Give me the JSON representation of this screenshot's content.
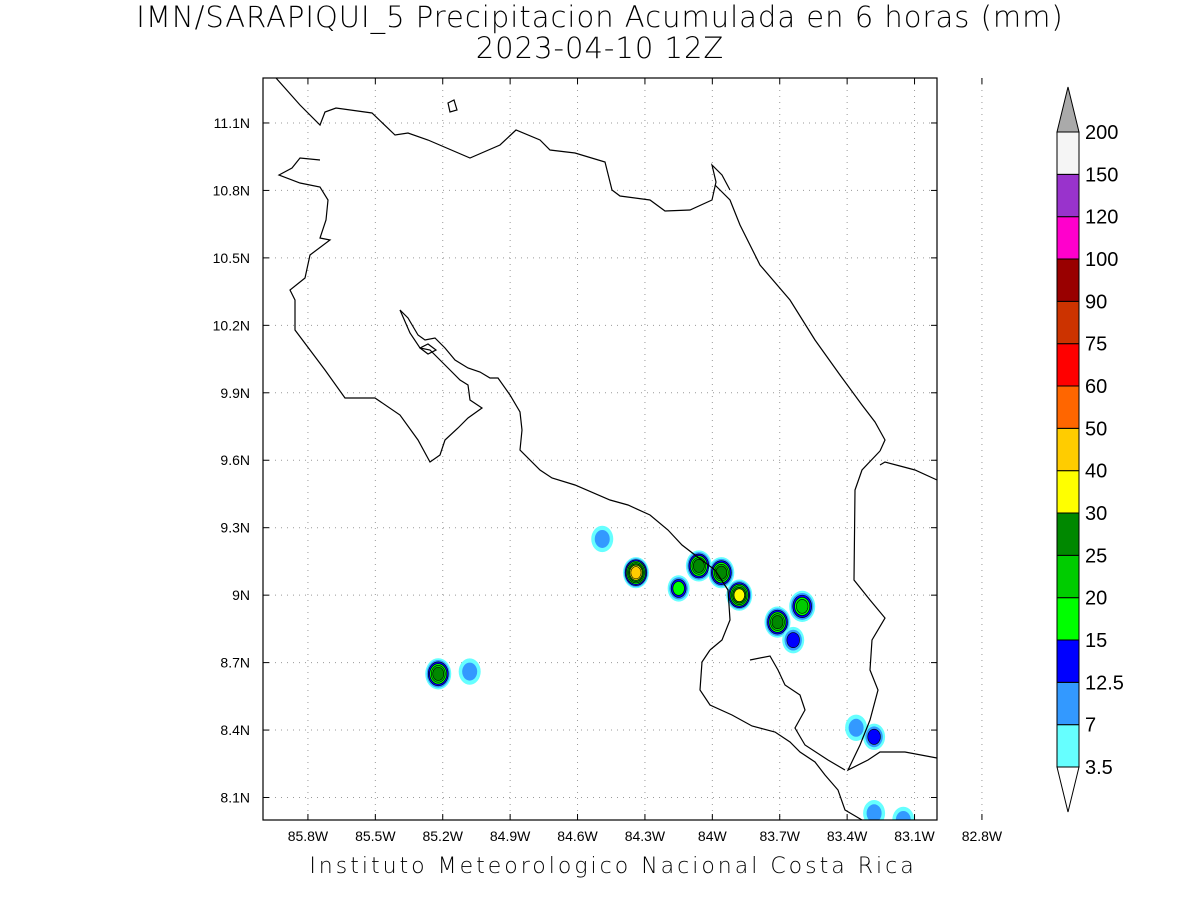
{
  "title": {
    "line1": "IMN/SARAPIQUI_5 Precipitacion Acumulada en 6 horas (mm)",
    "line2": "2023-04-10 12Z"
  },
  "footer": "Instituto Meteorologico Nacional Costa Rica",
  "axes": {
    "x_ticks": [
      "85.8W",
      "85.5W",
      "85.2W",
      "84.9W",
      "84.6W",
      "84.3W",
      "84W",
      "83.7W",
      "83.4W",
      "83.1W",
      "82.8W"
    ],
    "y_ticks": [
      "11.1N",
      "10.8N",
      "10.5N",
      "10.2N",
      "9.9N",
      "9.6N",
      "9.3N",
      "9N",
      "8.7N",
      "8.4N",
      "8.1N"
    ],
    "x_range_deg_w": [
      86.0,
      83.0
    ],
    "y_range_deg_n": [
      8.0,
      11.3
    ],
    "grid": "dotted"
  },
  "colorbar": {
    "levels": [
      "3.5",
      "7",
      "12.5",
      "15",
      "20",
      "25",
      "30",
      "40",
      "50",
      "60",
      "75",
      "90",
      "100",
      "120",
      "150",
      "200"
    ],
    "colors": [
      "#66ffff",
      "#3399ff",
      "#0000ff",
      "#00ff00",
      "#00cc00",
      "#008800",
      "#ffff00",
      "#ffcc00",
      "#ff6600",
      "#ff0000",
      "#cc3300",
      "#990000",
      "#ff00cc",
      "#9933cc",
      "#f5f5f5",
      "#aaaaaa"
    ],
    "below_color": "#ffffff",
    "above_color": "#aaaaaa"
  },
  "precip_cells": [
    {
      "lon_w": 84.34,
      "lat_n": 9.1,
      "peak": "40"
    },
    {
      "lon_w": 84.06,
      "lat_n": 9.13,
      "peak": "25"
    },
    {
      "lon_w": 83.96,
      "lat_n": 9.1,
      "peak": "25"
    },
    {
      "lon_w": 83.88,
      "lat_n": 9.0,
      "peak": "30"
    },
    {
      "lon_w": 84.15,
      "lat_n": 9.03,
      "peak": "15"
    },
    {
      "lon_w": 83.71,
      "lat_n": 8.88,
      "peak": "25"
    },
    {
      "lon_w": 83.6,
      "lat_n": 8.95,
      "peak": "20"
    },
    {
      "lon_w": 83.64,
      "lat_n": 8.8,
      "peak": "12.5"
    },
    {
      "lon_w": 85.22,
      "lat_n": 8.65,
      "peak": "25"
    },
    {
      "lon_w": 85.08,
      "lat_n": 8.66,
      "peak": "7"
    },
    {
      "lon_w": 83.28,
      "lat_n": 8.37,
      "peak": "12.5"
    },
    {
      "lon_w": 84.49,
      "lat_n": 9.25,
      "peak": "7"
    },
    {
      "lon_w": 83.36,
      "lat_n": 8.41,
      "peak": "7"
    },
    {
      "lon_w": 83.28,
      "lat_n": 8.03,
      "peak": "7"
    },
    {
      "lon_w": 83.15,
      "lat_n": 8.0,
      "peak": "7"
    }
  ]
}
